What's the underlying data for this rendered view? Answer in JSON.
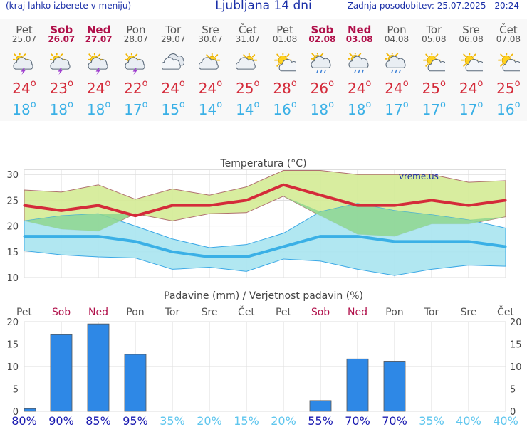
{
  "header": {
    "hint": "(kraj lahko izberete v meniju)",
    "title": "Ljubljana 14 dni",
    "updated": "Zadnja posodobitev: 25.07.2025 - 20:24"
  },
  "days": [
    {
      "name": "Pet",
      "date": "25.07",
      "weekend": false,
      "icon": "thunderstorm-sun-icon",
      "tmax": "24",
      "tmin": "18"
    },
    {
      "name": "Sob",
      "date": "26.07",
      "weekend": true,
      "icon": "thunderstorm-sun-icon",
      "tmax": "23",
      "tmin": "18"
    },
    {
      "name": "Ned",
      "date": "27.07",
      "weekend": true,
      "icon": "thunderstorm-sun-icon",
      "tmax": "24",
      "tmin": "18"
    },
    {
      "name": "Pon",
      "date": "28.07",
      "weekend": false,
      "icon": "thunderstorm-sun-icon",
      "tmax": "22",
      "tmin": "17"
    },
    {
      "name": "Tor",
      "date": "29.07",
      "weekend": false,
      "icon": "cloudy-icon",
      "tmax": "24",
      "tmin": "15"
    },
    {
      "name": "Sre",
      "date": "30.07",
      "weekend": false,
      "icon": "partly-cloudy-icon",
      "tmax": "24",
      "tmin": "14"
    },
    {
      "name": "Čet",
      "date": "31.07",
      "weekend": false,
      "icon": "partly-cloudy-icon",
      "tmax": "25",
      "tmin": "14"
    },
    {
      "name": "Pet",
      "date": "01.08",
      "weekend": false,
      "icon": "mostly-sunny-icon",
      "tmax": "28",
      "tmin": "16"
    },
    {
      "name": "Sob",
      "date": "02.08",
      "weekend": true,
      "icon": "rain-sun-icon",
      "tmax": "26",
      "tmin": "18"
    },
    {
      "name": "Ned",
      "date": "03.08",
      "weekend": true,
      "icon": "rain-sun-icon",
      "tmax": "24",
      "tmin": "18"
    },
    {
      "name": "Pon",
      "date": "04.08",
      "weekend": false,
      "icon": "rain-sun-icon",
      "tmax": "24",
      "tmin": "17"
    },
    {
      "name": "Tor",
      "date": "05.08",
      "weekend": false,
      "icon": "mostly-sunny-icon",
      "tmax": "25",
      "tmin": "17"
    },
    {
      "name": "Sre",
      "date": "06.08",
      "weekend": false,
      "icon": "mostly-sunny-icon",
      "tmax": "24",
      "tmin": "17"
    },
    {
      "name": "Čet",
      "date": "07.08",
      "weekend": false,
      "icon": "mostly-sunny-icon",
      "tmax": "25",
      "tmin": "16"
    }
  ],
  "degree_symbol": "o",
  "colors": {
    "max_line": "#d42b3a",
    "min_line": "#3ab0e6",
    "max_band": "#d4eb95",
    "min_band": "#a9e4f0",
    "overlap_band": "#8fd68f",
    "bar": "#2e88e6",
    "weekend": "#b0104a",
    "prob_high": "#1a1ab0",
    "prob_low": "#5fc6ee"
  },
  "chart_data": [
    {
      "type": "line",
      "title": "Temperatura (°C)",
      "watermark": "vreme.us",
      "ylim": [
        10,
        31
      ],
      "yticks": [
        10,
        15,
        20,
        25,
        30
      ],
      "categories": [
        "25.07",
        "26.07",
        "27.07",
        "28.07",
        "29.07",
        "30.07",
        "31.07",
        "01.08",
        "02.08",
        "03.08",
        "04.08",
        "05.08",
        "06.08",
        "07.08"
      ],
      "series": [
        {
          "role": "max_mean",
          "values": [
            24,
            23,
            24,
            22,
            24,
            24,
            25,
            28,
            26,
            24,
            24,
            25,
            24,
            25
          ]
        },
        {
          "role": "max_upper",
          "values": [
            27,
            26.6,
            28,
            25.2,
            27.2,
            26,
            27.6,
            30.8,
            30.8,
            30,
            30,
            30,
            28.5,
            28.8
          ]
        },
        {
          "role": "max_lower",
          "values": [
            21,
            19.4,
            19,
            22.4,
            21,
            22.4,
            22.6,
            25.8,
            22,
            18.4,
            18,
            20.4,
            20.4,
            21.8
          ]
        },
        {
          "role": "min_mean",
          "values": [
            18,
            18,
            18,
            17,
            15,
            14,
            14,
            16,
            18,
            18,
            17,
            17,
            17,
            16
          ]
        },
        {
          "role": "min_upper",
          "values": [
            21,
            22,
            22.4,
            20,
            17.5,
            15.8,
            16.4,
            18.6,
            22.8,
            24.4,
            23,
            22.2,
            21.2,
            19.6
          ]
        },
        {
          "role": "min_lower",
          "values": [
            15.2,
            14.4,
            14,
            13.8,
            11.6,
            12,
            11.2,
            13.6,
            13.2,
            11.6,
            10.4,
            11.6,
            12.4,
            12.2
          ]
        }
      ]
    },
    {
      "type": "bar",
      "title": "Padavine (mm) / Verjetnost padavin (%)",
      "ylim": [
        0,
        20
      ],
      "yticks": [
        0,
        5,
        10,
        15,
        20
      ],
      "categories": [
        "Pet",
        "Sob",
        "Ned",
        "Pon",
        "Tor",
        "Sre",
        "Čet",
        "Pet",
        "Sob",
        "Ned",
        "Pon",
        "Tor",
        "Sre",
        "Čet"
      ],
      "weekend": [
        false,
        true,
        true,
        false,
        false,
        false,
        false,
        false,
        true,
        true,
        false,
        false,
        false,
        false
      ],
      "values": [
        0.6,
        17.1,
        19.5,
        12.7,
        0,
        0,
        0,
        0,
        2.4,
        11.7,
        11.2,
        0,
        0,
        0
      ],
      "probabilities": [
        "80%",
        "90%",
        "85%",
        "95%",
        "35%",
        "20%",
        "15%",
        "20%",
        "55%",
        "70%",
        "70%",
        "35%",
        "40%",
        "40%"
      ]
    }
  ]
}
